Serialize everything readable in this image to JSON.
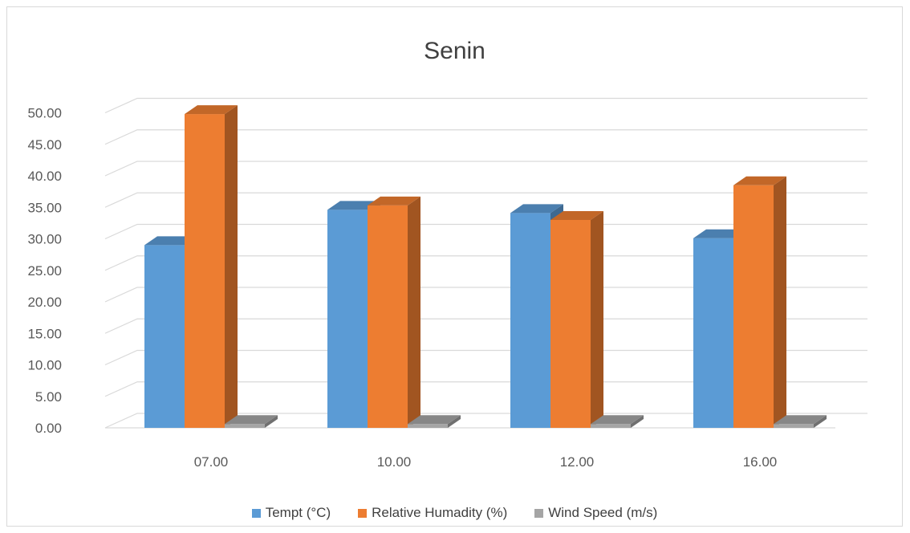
{
  "chart_data": {
    "type": "bar",
    "title": "Senin",
    "categories": [
      "07.00",
      "10.00",
      "12.00",
      "16.00"
    ],
    "series": [
      {
        "name": "Tempt (°C)",
        "values": [
          29.0,
          34.6,
          34.1,
          30.1
        ],
        "color": "#5b9bd5"
      },
      {
        "name": "Relative Humadity (%)",
        "values": [
          49.8,
          35.3,
          33.0,
          38.5
        ],
        "color": "#ed7d31"
      },
      {
        "name": "Wind Speed (m/s)",
        "values": [
          0.6,
          0.6,
          0.6,
          0.6
        ],
        "color": "#a5a5a5"
      }
    ],
    "ylim": [
      0,
      50
    ],
    "y_ticks": [
      "0.00",
      "5.00",
      "10.00",
      "15.00",
      "20.00",
      "25.00",
      "30.00",
      "35.00",
      "40.00",
      "45.00",
      "50.00"
    ],
    "grid": true,
    "legend_position": "bottom",
    "style": "3d-clustered-column"
  }
}
